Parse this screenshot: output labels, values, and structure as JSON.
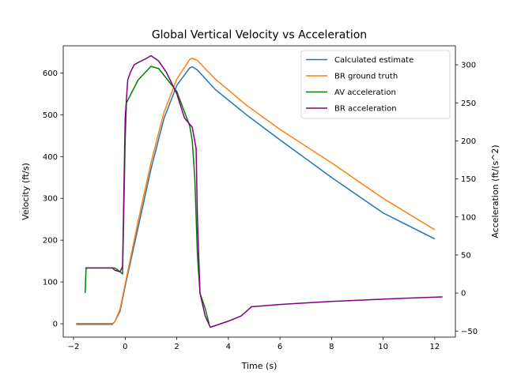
{
  "chart_data": {
    "type": "line",
    "title": "Global Vertical Velocity vs Acceleration",
    "xlabel": "Time (s)",
    "ylabel_left": "Velocity (ft/s)",
    "ylabel_right": "Acceleration (ft/(s^2)",
    "xlim": [
      -2.4,
      12.8
    ],
    "ylim_left": [
      -32,
      665
    ],
    "ylim_right": [
      -58,
      325
    ],
    "xticks": [
      -2,
      0,
      2,
      4,
      6,
      8,
      10,
      12
    ],
    "yticks_left": [
      0,
      100,
      200,
      300,
      400,
      500,
      600
    ],
    "yticks_right": [
      -50,
      0,
      50,
      100,
      150,
      200,
      250,
      300
    ],
    "grid": false,
    "legend_position": "top-right",
    "series": [
      {
        "name": "Calculated estimate",
        "axis": "left",
        "color": "#1f77b4",
        "x": [
          -1.9,
          -0.5,
          -0.4,
          -0.2,
          0,
          0.5,
          1,
          1.5,
          2,
          2.5,
          2.6,
          2.8,
          3.5,
          4.7,
          6,
          8,
          10,
          12
        ],
        "y": [
          0,
          0,
          5,
          30,
          90,
          230,
          370,
          490,
          570,
          612,
          615,
          607,
          560,
          500,
          440,
          350,
          265,
          203
        ]
      },
      {
        "name": "BR ground truth",
        "axis": "left",
        "color": "#ff7f0e",
        "x": [
          -1.9,
          -0.5,
          -0.4,
          -0.2,
          0,
          0.5,
          1,
          1.5,
          2,
          2.5,
          2.6,
          2.8,
          3.5,
          4.7,
          6,
          8,
          10,
          12
        ],
        "y": [
          -2,
          -2,
          5,
          35,
          95,
          245,
          385,
          505,
          585,
          632,
          635,
          630,
          585,
          523,
          465,
          385,
          300,
          225
        ]
      },
      {
        "name": "AV acceleration",
        "axis": "right",
        "color": "#008000",
        "x": [
          -1.55,
          -1.52,
          -1.5,
          -0.4,
          -0.2,
          -0.1,
          0,
          0.05,
          0.2,
          0.5,
          1,
          1.3,
          2,
          2.5,
          2.6,
          2.7,
          2.8,
          2.9,
          3.1,
          3.25
        ],
        "y": [
          0,
          30,
          33,
          33,
          28,
          25,
          200,
          250,
          260,
          280,
          298,
          295,
          265,
          220,
          200,
          150,
          50,
          0,
          -20,
          -40
        ]
      },
      {
        "name": "BR acceleration",
        "axis": "right",
        "color": "#800080",
        "x": [
          -1.55,
          -0.5,
          -0.4,
          -0.2,
          -0.1,
          0,
          0.1,
          0.2,
          0.35,
          0.5,
          0.8,
          1,
          1.3,
          1.6,
          2,
          2.3,
          2.6,
          2.75,
          2.8,
          2.9,
          3.1,
          3.3,
          4,
          4.5,
          4.9,
          6,
          8,
          10,
          12.3
        ],
        "y": [
          33,
          33,
          30,
          28,
          35,
          230,
          280,
          290,
          300,
          303,
          308,
          312,
          305,
          290,
          262,
          230,
          218,
          190,
          100,
          0,
          -30,
          -45,
          -37,
          -30,
          -18,
          -15,
          -11,
          -8,
          -5
        ]
      }
    ]
  }
}
